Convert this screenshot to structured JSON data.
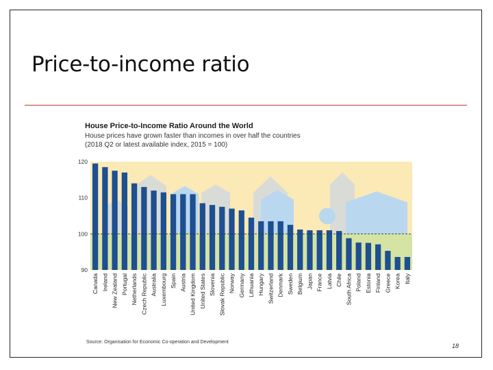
{
  "slide": {
    "title": "Price-to-income ratio",
    "page_number": "18",
    "source": "Source: Organisation for Economic Co-operation and Development"
  },
  "colors": {
    "bar": "#1d4f91",
    "bg_above": "#fbe9b6",
    "bg_below": "#d5e3a4",
    "house_grey": "#d9dcd6",
    "house_blue": "#b9d7ef",
    "rule": "#c0392b"
  },
  "chart_data": {
    "type": "bar",
    "title": "House Price-to-Income Ratio Around the World",
    "subtitle_lines": [
      "House prices have grown faster than incomes in over half the countries",
      "(2018 Q2 or latest available index, 2015 = 100)"
    ],
    "xlabel": "",
    "ylabel": "",
    "ylim": [
      90,
      120
    ],
    "yticks": [
      90,
      100,
      110,
      120
    ],
    "reference_line": 100,
    "grid": false,
    "categories": [
      "Canada",
      "Ireland",
      "New Zealand",
      "Portugal",
      "Netherlands",
      "Czech Republic",
      "Australia",
      "Luxembourg",
      "Spain",
      "Austria",
      "United Kingdom",
      "United States",
      "Slovenia",
      "Slovak Republic",
      "Norway",
      "Germany",
      "Lithuania",
      "Hungary",
      "Switzerland",
      "Denmark",
      "Sweden",
      "Belgium",
      "Japan",
      "France",
      "Latvia",
      "Chile",
      "South Africa",
      "Poland",
      "Estonia",
      "Finland",
      "Greece",
      "Korea",
      "Italy"
    ],
    "values": [
      119.5,
      118.5,
      117.5,
      117,
      114,
      113,
      112,
      111.5,
      111,
      111,
      111,
      108.5,
      108,
      107.5,
      107,
      106.5,
      104.5,
      103.5,
      103.5,
      103.5,
      102.5,
      101.2,
      101,
      101,
      101,
      100.8,
      98.8,
      97.6,
      97.5,
      97.1,
      95.3,
      93.6,
      93.6
    ]
  }
}
